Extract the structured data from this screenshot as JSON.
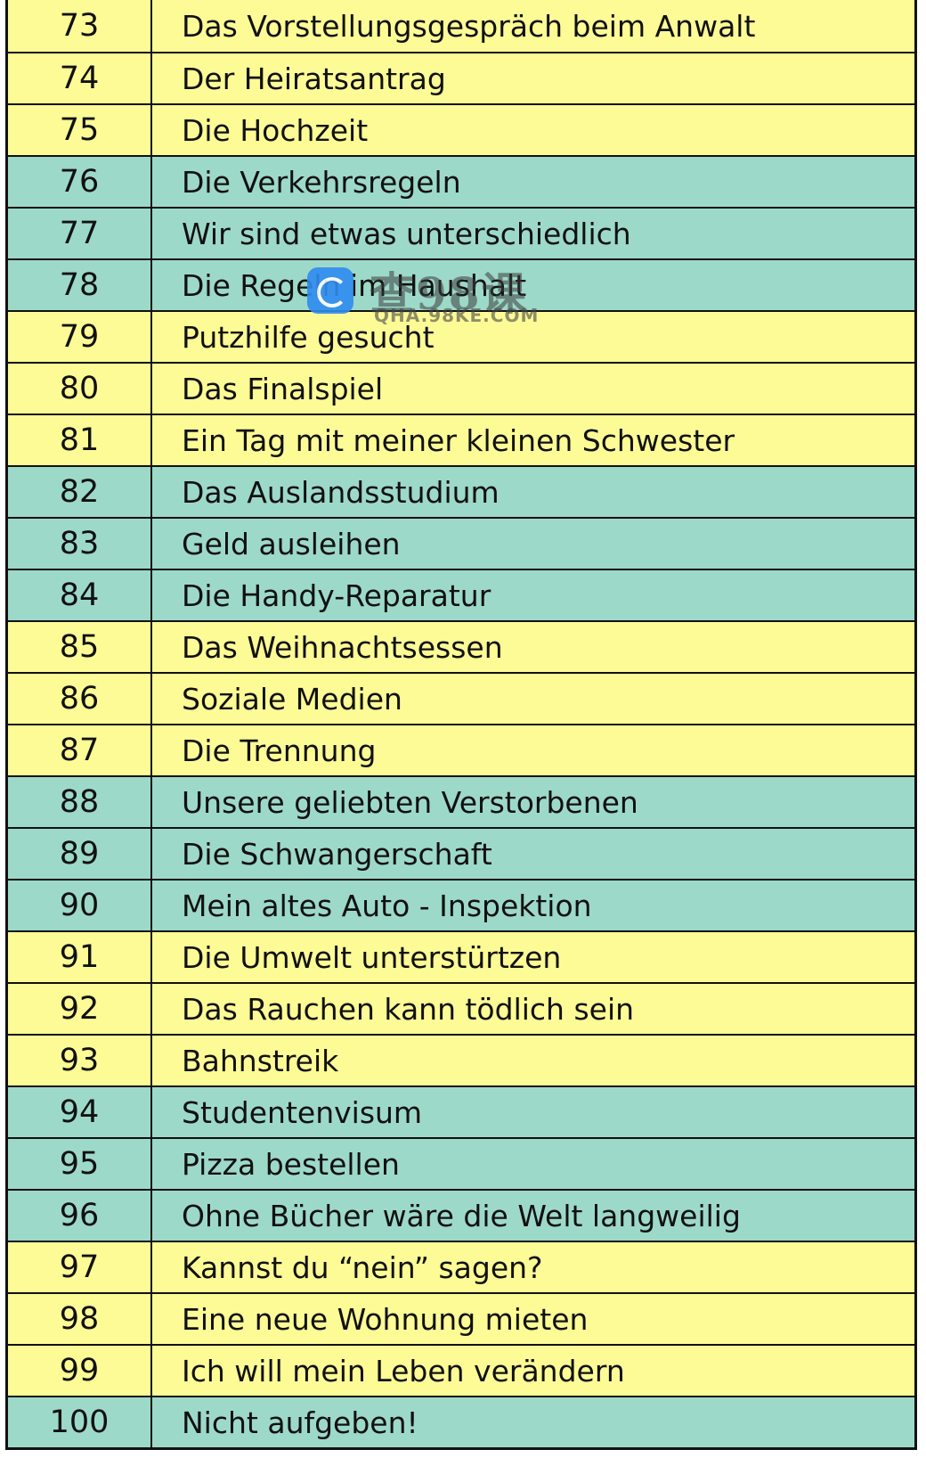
{
  "rows": [
    {
      "num": "73",
      "title": "Das Vorstellungsgespräch beim Anwalt",
      "color": "yellow"
    },
    {
      "num": "74",
      "title": "Der Heiratsantrag",
      "color": "yellow"
    },
    {
      "num": "75",
      "title": "Die Hochzeit",
      "color": "yellow"
    },
    {
      "num": "76",
      "title": "Die Verkehrsregeln",
      "color": "teal"
    },
    {
      "num": "77",
      "title": "Wir sind etwas unterschiedlich",
      "color": "teal"
    },
    {
      "num": "78",
      "title": "Die Regeln im Haushalt",
      "color": "teal"
    },
    {
      "num": "79",
      "title": "Putzhilfe gesucht",
      "color": "yellow"
    },
    {
      "num": "80",
      "title": "Das Finalspiel",
      "color": "yellow"
    },
    {
      "num": "81",
      "title": "Ein Tag mit meiner kleinen Schwester",
      "color": "yellow"
    },
    {
      "num": "82",
      "title": "Das Auslandsstudium",
      "color": "teal"
    },
    {
      "num": "83",
      "title": "Geld ausleihen",
      "color": "teal"
    },
    {
      "num": "84",
      "title": "Die Handy-Reparatur",
      "color": "teal"
    },
    {
      "num": "85",
      "title": "Das Weihnachtsessen",
      "color": "yellow"
    },
    {
      "num": "86",
      "title": "Soziale Medien",
      "color": "yellow"
    },
    {
      "num": "87",
      "title": "Die Trennung",
      "color": "yellow"
    },
    {
      "num": "88",
      "title": "Unsere geliebten Verstorbenen",
      "color": "teal"
    },
    {
      "num": "89",
      "title": "Die Schwangerschaft",
      "color": "teal"
    },
    {
      "num": "90",
      "title": "Mein altes Auto - Inspektion",
      "color": "teal"
    },
    {
      "num": "91",
      "title": "Die Umwelt unterstürtzen",
      "color": "yellow"
    },
    {
      "num": "92",
      "title": "Das Rauchen kann tödlich sein",
      "color": "yellow"
    },
    {
      "num": "93",
      "title": "Bahnstreik",
      "color": "yellow"
    },
    {
      "num": "94",
      "title": "Studentenvisum",
      "color": "teal"
    },
    {
      "num": "95",
      "title": "Pizza bestellen",
      "color": "teal"
    },
    {
      "num": "96",
      "title": "Ohne Bücher wäre die Welt langweilig",
      "color": "teal"
    },
    {
      "num": "97",
      "title": "Kannst du  “nein”  sagen?",
      "color": "yellow"
    },
    {
      "num": "98",
      "title": "Eine neue Wohnung mieten",
      "color": "yellow"
    },
    {
      "num": "99",
      "title": "Ich will mein Leben verändern",
      "color": "yellow"
    },
    {
      "num": "100",
      "title": "Nicht aufgeben!",
      "color": "teal"
    }
  ],
  "watermark": {
    "icon": "qha-logo-icon",
    "chinese": "查98课",
    "url": "QHA.98KE.COM"
  },
  "colors": {
    "yellow": "#fdfb96",
    "teal": "#9dd9c8",
    "border": "#111111"
  }
}
